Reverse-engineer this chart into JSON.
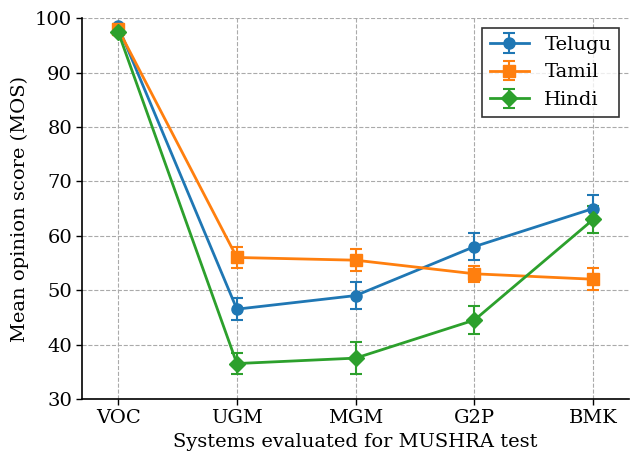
{
  "categories": [
    "VOC",
    "UGM",
    "MGM",
    "G2P",
    "BMK"
  ],
  "series": {
    "Telugu": {
      "values": [
        98.5,
        46.5,
        49.0,
        58.0,
        65.0
      ],
      "yerr": [
        0.5,
        2.0,
        2.5,
        2.5,
        2.5
      ],
      "color": "#1f77b4",
      "marker": "o"
    },
    "Tamil": {
      "values": [
        98.0,
        56.0,
        55.5,
        53.0,
        52.0
      ],
      "yerr": [
        0.5,
        2.0,
        2.0,
        1.5,
        2.0
      ],
      "color": "#ff7f0e",
      "marker": "s"
    },
    "Hindi": {
      "values": [
        97.5,
        36.5,
        37.5,
        44.5,
        63.0
      ],
      "yerr": [
        0.5,
        2.0,
        3.0,
        2.5,
        2.5
      ],
      "color": "#2ca02c",
      "marker": "D"
    }
  },
  "xlabel": "Systems evaluated for MUSHRA test",
  "ylabel": "Mean opinion score (MOS)",
  "ylim": [
    30,
    100
  ],
  "yticks": [
    30,
    40,
    50,
    60,
    70,
    80,
    90,
    100
  ],
  "legend_order": [
    "Telugu",
    "Tamil",
    "Hindi"
  ],
  "legend_loc": "upper right",
  "background_color": "#ffffff",
  "capsize": 4,
  "linewidth": 2.0,
  "markersize": 8,
  "tick_fontsize": 14,
  "label_fontsize": 14,
  "legend_fontsize": 14
}
